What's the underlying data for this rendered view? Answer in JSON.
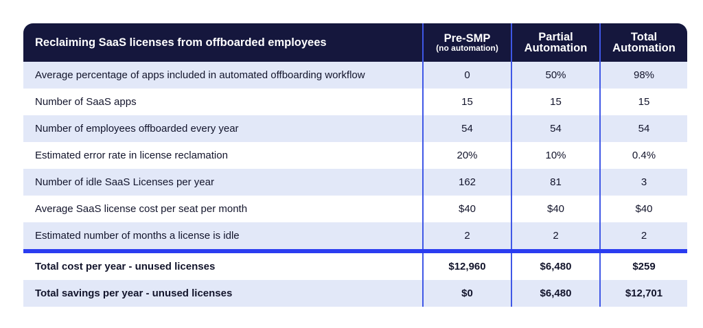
{
  "table": {
    "header": {
      "title": "Reclaiming SaaS licenses from offboarded employees",
      "columns": [
        {
          "main": "Pre-SMP",
          "sub": "(no automation)"
        },
        {
          "main": "Partial",
          "sub2": "Automation"
        },
        {
          "main": "Total",
          "sub2": "Automation"
        }
      ]
    },
    "rows": [
      {
        "label": "Average percentage of apps included in automated offboarding workflow",
        "values": [
          "0",
          "50%",
          "98%"
        ]
      },
      {
        "label": "Number of SaaS apps",
        "values": [
          "15",
          "15",
          "15"
        ]
      },
      {
        "label": "Number of employees offboarded every year",
        "values": [
          "54",
          "54",
          "54"
        ]
      },
      {
        "label": "Estimated error rate in license reclamation",
        "values": [
          "20%",
          "10%",
          "0.4%"
        ]
      },
      {
        "label": "Number of idle SaaS Licenses per year",
        "values": [
          "162",
          "81",
          "3"
        ]
      },
      {
        "label": "Average SaaS license cost per seat per month",
        "values": [
          "$40",
          "$40",
          "$40"
        ]
      },
      {
        "label": "Estimated number of months a license is idle",
        "values": [
          "2",
          "2",
          "2"
        ]
      }
    ],
    "totals": [
      {
        "label": "Total cost per year - unused licenses",
        "values": [
          "$12,960",
          "$6,480",
          "$259"
        ]
      },
      {
        "label": "Total savings per year - unused licenses",
        "values": [
          "$0",
          "$6,480",
          "$12,701"
        ]
      }
    ],
    "colors": {
      "header_bg": "#15173d",
      "row_alt_bg": "#e2e8f8",
      "accent": "#2a3cf0"
    }
  }
}
